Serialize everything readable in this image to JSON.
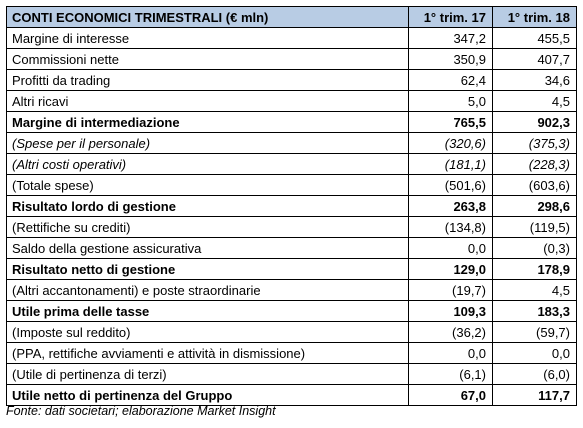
{
  "table": {
    "header": {
      "label": "CONTI ECONOMICI TRIMESTRALI (€ mln)",
      "col1": "1° trim. 17",
      "col2": "1° trim. 18"
    },
    "rows": [
      {
        "label": "Margine di interesse",
        "v1": "347,2",
        "v2": "455,5",
        "style": "normal"
      },
      {
        "label": "Commissioni nette",
        "v1": "350,9",
        "v2": "407,7",
        "style": "normal"
      },
      {
        "label": "Profitti da trading",
        "v1": "62,4",
        "v2": "34,6",
        "style": "normal"
      },
      {
        "label": "Altri ricavi",
        "v1": "5,0",
        "v2": "4,5",
        "style": "normal"
      },
      {
        "label": "Margine di intermediazione",
        "v1": "765,5",
        "v2": "902,3",
        "style": "bold"
      },
      {
        "label": "(Spese per il personale)",
        "v1": "(320,6)",
        "v2": "(375,3)",
        "style": "italic"
      },
      {
        "label": "(Altri costi operativi)",
        "v1": "(181,1)",
        "v2": "(228,3)",
        "style": "italic"
      },
      {
        "label": "(Totale spese)",
        "v1": "(501,6)",
        "v2": "(603,6)",
        "style": "normal"
      },
      {
        "label": "Risultato lordo di gestione",
        "v1": "263,8",
        "v2": "298,6",
        "style": "bold"
      },
      {
        "label": "(Rettifiche su crediti)",
        "v1": "(134,8)",
        "v2": "(119,5)",
        "style": "normal"
      },
      {
        "label": "Saldo della gestione assicurativa",
        "v1": "0,0",
        "v2": "(0,3)",
        "style": "normal"
      },
      {
        "label": "Risultato netto di gestione",
        "v1": "129,0",
        "v2": "178,9",
        "style": "bold"
      },
      {
        "label": "(Altri accantonamenti) e poste straordinarie",
        "v1": "(19,7)",
        "v2": "4,5",
        "style": "normal"
      },
      {
        "label": "Utile prima delle tasse",
        "v1": "109,3",
        "v2": "183,3",
        "style": "bold"
      },
      {
        "label": "(Imposte sul reddito)",
        "v1": "(36,2)",
        "v2": "(59,7)",
        "style": "normal"
      },
      {
        "label": "(PPA, rettifiche avviamenti e attività in dismissione)",
        "v1": "0,0",
        "v2": "0,0",
        "style": "normal"
      },
      {
        "label": "(Utile di pertinenza di terzi)",
        "v1": "(6,1)",
        "v2": "(6,0)",
        "style": "normal"
      },
      {
        "label": "Utile netto di pertinenza del Gruppo",
        "v1": "67,0",
        "v2": "117,7",
        "style": "bold"
      }
    ]
  },
  "source": "Fonte: dati societari; elaborazione Market Insight"
}
